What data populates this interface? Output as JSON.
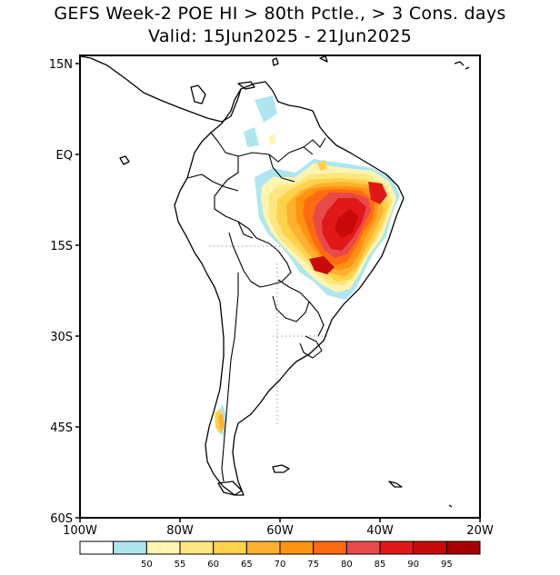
{
  "title_line1": "GEFS Week-2 POE HI > 80th Pctle., > 3 Cons. days",
  "title_line2": "Valid: 15Jun2025 - 21Jun2025",
  "lat_ticks": [
    {
      "label": "15N",
      "value": 15
    },
    {
      "label": "EQ",
      "value": 0
    },
    {
      "label": "15S",
      "value": -15
    },
    {
      "label": "30S",
      "value": -30
    },
    {
      "label": "45S",
      "value": -45
    },
    {
      "label": "60S",
      "value": -60
    }
  ],
  "lon_ticks": [
    {
      "label": "100W",
      "value": -100
    },
    {
      "label": "80W",
      "value": -80
    },
    {
      "label": "60W",
      "value": -60
    },
    {
      "label": "40W",
      "value": -40
    },
    {
      "label": "20W",
      "value": -20
    }
  ],
  "extent": {
    "lon_min": -100,
    "lon_max": -20,
    "lat_min": -60,
    "lat_max": 15
  },
  "colorbar": {
    "colors": [
      "#ffffff",
      "#aee6f0",
      "#fff5b0",
      "#ffe680",
      "#ffd24a",
      "#ffb030",
      "#ff9410",
      "#ff6a10",
      "#e84a4a",
      "#e01818",
      "#c80a0a",
      "#a80000"
    ],
    "labels": [
      "50",
      "55",
      "60",
      "65",
      "70",
      "75",
      "80",
      "85",
      "90",
      "95"
    ]
  }
}
